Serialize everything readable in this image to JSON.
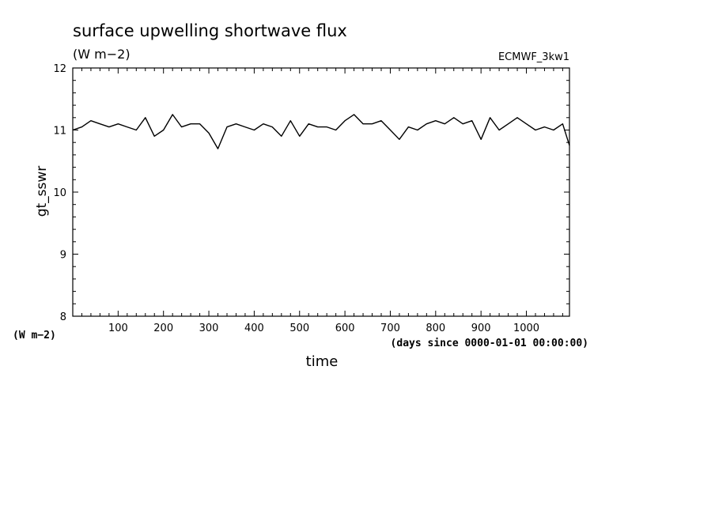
{
  "chart_data": {
    "type": "line",
    "title": "surface upwelling shortwave flux",
    "subtitle": "(W m−2)",
    "model_label": "ECMWF_3kw1",
    "xlabel": "time",
    "x_units": "(days since 0000-01-01 00:00:00)",
    "ylabel": "gt_sswr",
    "y_units": "(W m−2)",
    "xlim": [
      0,
      1095
    ],
    "ylim": [
      8,
      12
    ],
    "x_ticks": [
      100,
      200,
      300,
      400,
      500,
      600,
      700,
      800,
      900,
      1000
    ],
    "y_ticks": [
      8,
      9,
      10,
      11,
      12
    ],
    "line_color": "#000000",
    "series": [
      {
        "x": [
          0,
          20,
          40,
          60,
          80,
          100,
          120,
          140,
          160,
          180,
          200,
          220,
          240,
          260,
          280,
          300,
          320,
          340,
          360,
          380,
          400,
          420,
          440,
          460,
          480,
          500,
          520,
          540,
          560,
          580,
          600,
          620,
          640,
          660,
          680,
          700,
          720,
          740,
          760,
          780,
          800,
          820,
          840,
          860,
          880,
          900,
          920,
          940,
          960,
          980,
          1000,
          1020,
          1040,
          1060,
          1080,
          1095
        ],
        "values": [
          11.0,
          11.05,
          11.15,
          11.1,
          11.05,
          11.1,
          11.05,
          11.0,
          11.2,
          10.9,
          11.0,
          11.25,
          11.05,
          11.1,
          11.1,
          10.95,
          10.7,
          11.05,
          11.1,
          11.05,
          11.0,
          11.1,
          11.05,
          10.9,
          11.15,
          10.9,
          11.1,
          11.05,
          11.05,
          11.0,
          11.15,
          11.25,
          11.1,
          11.1,
          11.15,
          11.0,
          10.85,
          11.05,
          11.0,
          11.1,
          11.15,
          11.1,
          11.2,
          11.1,
          11.15,
          10.85,
          11.2,
          11.0,
          11.1,
          11.2,
          11.1,
          11.0,
          11.05,
          11.0,
          11.1,
          10.75
        ]
      }
    ]
  }
}
